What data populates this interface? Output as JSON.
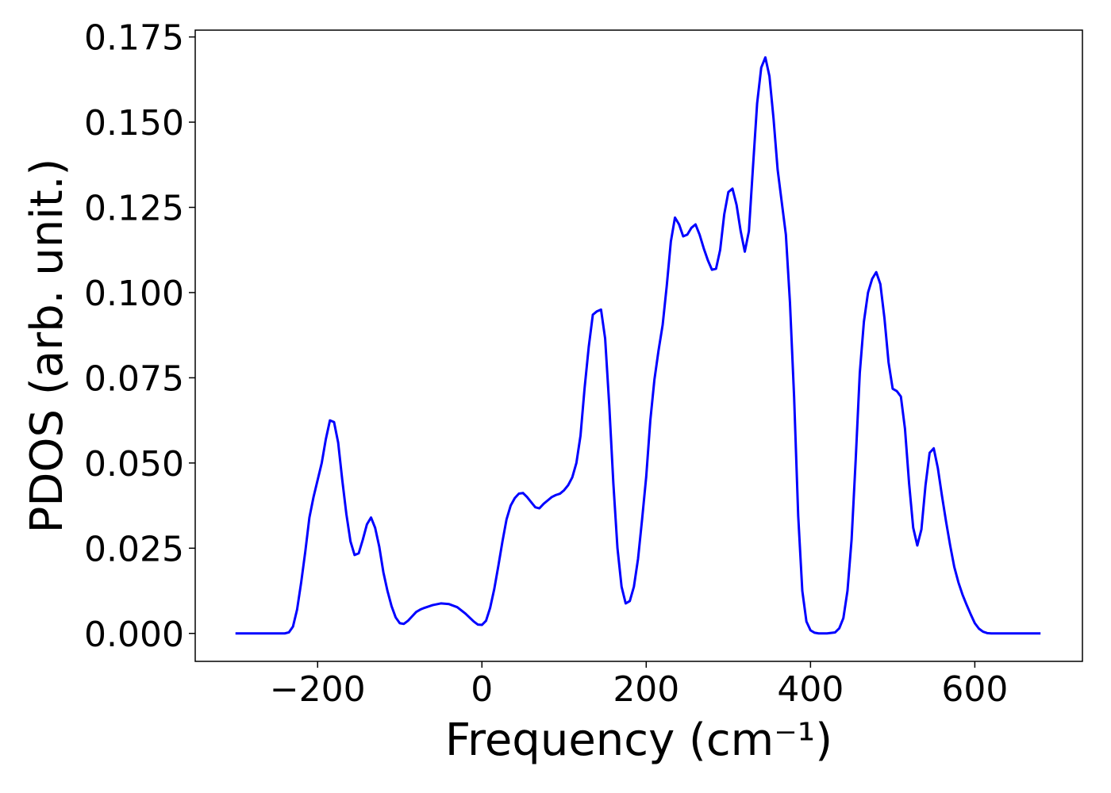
{
  "chart_data": {
    "type": "line",
    "xlabel": "Frequency (cm⁻¹)",
    "ylabel": "PDOS (arb. unit.)",
    "x": [
      -300,
      -280,
      -260,
      -240,
      -235,
      -230,
      -225,
      -220,
      -215,
      -210,
      -205,
      -200,
      -195,
      -190,
      -185,
      -180,
      -175,
      -170,
      -165,
      -160,
      -155,
      -150,
      -145,
      -140,
      -135,
      -130,
      -125,
      -120,
      -115,
      -110,
      -105,
      -100,
      -95,
      -90,
      -85,
      -80,
      -75,
      -70,
      -60,
      -50,
      -40,
      -30,
      -20,
      -10,
      -5,
      0,
      5,
      10,
      15,
      20,
      25,
      30,
      35,
      40,
      45,
      50,
      55,
      60,
      65,
      70,
      75,
      80,
      85,
      90,
      95,
      100,
      105,
      110,
      115,
      120,
      125,
      130,
      135,
      140,
      145,
      150,
      155,
      160,
      165,
      170,
      175,
      180,
      185,
      190,
      195,
      200,
      205,
      210,
      215,
      220,
      225,
      230,
      235,
      240,
      245,
      250,
      255,
      260,
      265,
      270,
      275,
      280,
      285,
      290,
      295,
      300,
      305,
      310,
      315,
      320,
      325,
      330,
      335,
      340,
      345,
      350,
      355,
      360,
      365,
      370,
      375,
      380,
      385,
      390,
      395,
      400,
      405,
      410,
      420,
      430,
      435,
      440,
      445,
      450,
      455,
      460,
      465,
      470,
      475,
      480,
      485,
      490,
      495,
      500,
      505,
      510,
      515,
      520,
      525,
      530,
      535,
      540,
      545,
      550,
      555,
      560,
      565,
      570,
      575,
      580,
      585,
      590,
      595,
      600,
      605,
      610,
      615,
      620,
      640,
      660,
      680
    ],
    "series": [
      {
        "color": "#0000ff",
        "values": [
          0,
          0,
          0,
          0,
          0.0003,
          0.002,
          0.007,
          0.015,
          0.024,
          0.034,
          0.04,
          0.045,
          0.05,
          0.057,
          0.0625,
          0.062,
          0.056,
          0.045,
          0.035,
          0.027,
          0.023,
          0.0235,
          0.0275,
          0.032,
          0.034,
          0.031,
          0.0255,
          0.018,
          0.0125,
          0.008,
          0.0047,
          0.003,
          0.0028,
          0.0037,
          0.005,
          0.0063,
          0.007,
          0.0075,
          0.0083,
          0.0088,
          0.0086,
          0.0077,
          0.0058,
          0.0035,
          0.0026,
          0.0025,
          0.0037,
          0.0075,
          0.013,
          0.0198,
          0.027,
          0.0335,
          0.0375,
          0.0397,
          0.041,
          0.0412,
          0.04,
          0.0385,
          0.037,
          0.0367,
          0.038,
          0.039,
          0.04,
          0.0406,
          0.041,
          0.042,
          0.0435,
          0.0458,
          0.05,
          0.058,
          0.072,
          0.084,
          0.0935,
          0.0945,
          0.095,
          0.0865,
          0.067,
          0.044,
          0.025,
          0.0137,
          0.0088,
          0.0095,
          0.0137,
          0.0218,
          0.0335,
          0.046,
          0.0625,
          0.0745,
          0.083,
          0.0905,
          0.102,
          0.115,
          0.122,
          0.12,
          0.1165,
          0.117,
          0.119,
          0.12,
          0.117,
          0.113,
          0.1095,
          0.1067,
          0.107,
          0.1125,
          0.123,
          0.1295,
          0.1305,
          0.1257,
          0.118,
          0.112,
          0.118,
          0.137,
          0.1555,
          0.166,
          0.169,
          0.1635,
          0.151,
          0.136,
          0.1265,
          0.117,
          0.097,
          0.0695,
          0.0345,
          0.0125,
          0.0035,
          0.0009,
          0.0002,
          0,
          0,
          0.0003,
          0.0015,
          0.0045,
          0.0125,
          0.0275,
          0.051,
          0.0765,
          0.0915,
          0.1,
          0.104,
          0.106,
          0.1025,
          0.0925,
          0.0795,
          0.0718,
          0.0711,
          0.0695,
          0.06,
          0.044,
          0.031,
          0.0258,
          0.0305,
          0.0435,
          0.053,
          0.0543,
          0.0485,
          0.0404,
          0.0328,
          0.0258,
          0.0195,
          0.015,
          0.0114,
          0.0084,
          0.0056,
          0.003,
          0.0014,
          0.0005,
          0.0001,
          0,
          0,
          0,
          0
        ]
      }
    ],
    "xlim": [
      -349,
      731
    ],
    "ylim": [
      -0.0082,
      0.177
    ],
    "xticks": [
      {
        "value": -200,
        "label": "−200"
      },
      0,
      200,
      400,
      600
    ],
    "yticks": [
      {
        "value": 0,
        "label": "0.000"
      },
      {
        "value": 0.025,
        "label": "0.025"
      },
      {
        "value": 0.05,
        "label": "0.050"
      },
      {
        "value": 0.075,
        "label": "0.075"
      },
      {
        "value": 0.1,
        "label": "0.100"
      },
      {
        "value": 0.125,
        "label": "0.125"
      },
      {
        "value": 0.15,
        "label": "0.150"
      },
      {
        "value": 0.175,
        "label": "0.175"
      }
    ],
    "grid": false
  }
}
